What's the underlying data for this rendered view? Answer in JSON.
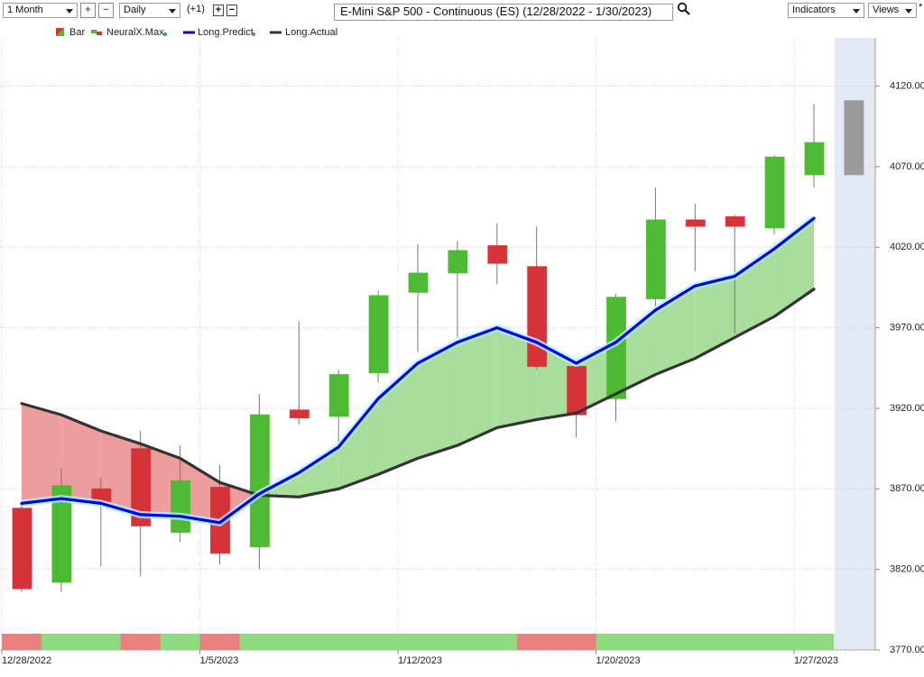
{
  "toolbar": {
    "period": "1 Month",
    "interval": "Daily",
    "offset": "(+1)",
    "indicators": "Indicators",
    "views": "Views",
    "marker": "*"
  },
  "chart_data": {
    "type": "candlestick",
    "title": "E-Mini S&P 500 - Continuous (ES) (12/28/2022 - 1/30/2023)",
    "categories": [
      "12/28/2022",
      null,
      null,
      null,
      null,
      "1/5/2023",
      null,
      null,
      null,
      null,
      "1/12/2023",
      null,
      null,
      null,
      null,
      "1/20/2023",
      null,
      null,
      null,
      null,
      "1/27/2023",
      null
    ],
    "ylim": [
      3770,
      4150
    ],
    "yticks": [
      {
        "value": 3770,
        "label": "3770.00"
      },
      {
        "value": 3820,
        "label": "3820.00"
      },
      {
        "value": 3870,
        "label": "3870.00"
      },
      {
        "value": 3920,
        "label": "3920.00"
      },
      {
        "value": 3970,
        "label": "3970.00"
      },
      {
        "value": 4020,
        "label": "4020.00"
      },
      {
        "value": 4070,
        "label": "4070.00"
      },
      {
        "value": 4120,
        "label": "4120.00"
      }
    ],
    "grid": true,
    "fill_up": "#a9dd9b",
    "fill_down": "#ee9d9d",
    "series": [
      {
        "name": "Bar",
        "type": "candlestick",
        "open": [
          3858,
          3812,
          3870,
          3895,
          3843,
          3871,
          3834,
          3919,
          3915,
          3942,
          3992,
          4004,
          4021,
          4008,
          3946,
          3926,
          3988,
          4037,
          4039,
          4032,
          4065,
          4065
        ],
        "high": [
          3860,
          3883,
          3877,
          3906,
          3897,
          3885,
          3929,
          3974,
          3944,
          3993,
          4022,
          4024,
          4035,
          4033,
          3947,
          3991,
          4057,
          4047,
          4040,
          4077,
          4109,
          null
        ],
        "low": [
          3806,
          3806,
          3822,
          3816,
          3837,
          3823,
          3820,
          3910,
          3897,
          3936,
          3955,
          3964,
          3997,
          3944,
          3902,
          3912,
          3983,
          4005,
          3966,
          4028,
          4057,
          null
        ],
        "close": [
          3808,
          3872,
          3862,
          3847,
          3875,
          3830,
          3916,
          3914,
          3941,
          3990,
          4004,
          4018,
          4010,
          3946,
          3916,
          3989,
          4037,
          4033,
          4033,
          4076,
          4085,
          4111
        ],
        "colors": [
          "#d63338",
          "#4cba32",
          "#d63338",
          "#d63338",
          "#4cba32",
          "#d63338",
          "#4cba32",
          "#d63338",
          "#4cba32",
          "#4cba32",
          "#4cba32",
          "#4cba32",
          "#d63338",
          "#d63338",
          "#d63338",
          "#4cba32",
          "#4cba32",
          "#d63338",
          "#d63338",
          "#4cba32",
          "#4cba32",
          "#9a9a9a"
        ]
      },
      {
        "name": "NeuralX.Max",
        "type": "strip",
        "up_color": "#8fd980",
        "down_color": "#e98080",
        "values": [
          -1,
          1,
          1,
          -1,
          1,
          -1,
          1,
          1,
          1,
          1,
          1,
          1,
          1,
          -1,
          -1,
          1,
          1,
          1,
          1,
          1,
          1,
          null
        ]
      },
      {
        "name": "Long.Predict",
        "type": "line",
        "color": "#0000ee",
        "values": [
          3861,
          3864,
          3861,
          3854,
          3853,
          3849,
          3867,
          3880,
          3896,
          3926,
          3948,
          3961,
          3970,
          3961,
          3948,
          3961,
          3981,
          3996,
          4002,
          4019,
          4038,
          null
        ]
      },
      {
        "name": "Long.Actual",
        "type": "line",
        "color": "#333333",
        "values": [
          3923,
          3916,
          3906,
          3898,
          3889,
          3874,
          3866,
          3865,
          3870,
          3879,
          3889,
          3897,
          3908,
          3913,
          3917,
          3929,
          3941,
          3951,
          3964,
          3977,
          3994,
          null
        ]
      }
    ]
  }
}
